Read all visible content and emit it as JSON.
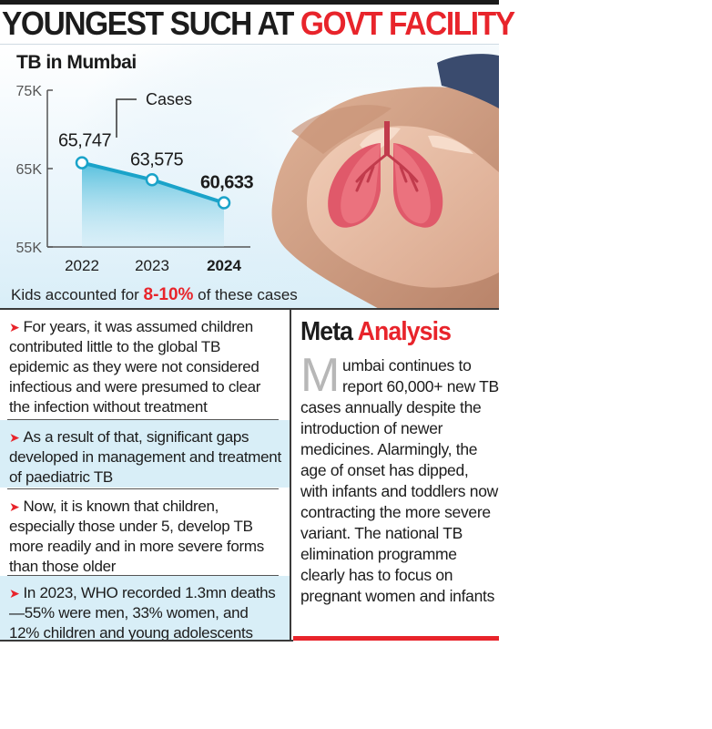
{
  "headline": {
    "part1": "YOUNGEST SUCH AT ",
    "part2": "GOVT FACILITY"
  },
  "chart_data": {
    "type": "line",
    "title": "TB in Mumbai",
    "categories": [
      "2022",
      "2023",
      "2024"
    ],
    "series": [
      {
        "name": "Cases",
        "values": [
          65747,
          63575,
          60633
        ]
      }
    ],
    "value_labels": [
      "65,747",
      "63,575",
      "60,633"
    ],
    "y_ticks": [
      "75K",
      "65K",
      "55K"
    ],
    "y_tick_values": [
      75000,
      65000,
      55000
    ],
    "ylim": [
      55000,
      75000
    ],
    "grid": false,
    "legend": "top"
  },
  "kids_note": {
    "prefix": "Kids accounted for ",
    "pct": "8-10%",
    "suffix": " of these cases"
  },
  "bullets": [
    "For years, it was assumed children contributed little to the global TB epidemic as they were not considered infectious and were presumed to clear the infection without treatment",
    "As a result of that, significant gaps developed in management and treatment of paediatric TB",
    "Now, it is known that children, especially those under 5, develop TB more readily and in more severe forms than those older",
    "In 2023, WHO recorded 1.3mn deaths—55% were men, 33% women, and 12% children and young adolescents"
  ],
  "meta": {
    "title_part1": "Meta ",
    "title_part2": "Analysis",
    "dropcap": "M",
    "body": "umbai continues to report 60,000+ new TB cases annually despite the introduction of newer medicines. Alarmingly, the age of onset has dipped, with infants and toddlers now contracting the more severe variant. The national TB elimination programme clearly has to focus on pregnant women and infants"
  },
  "colors": {
    "accent": "#e8242b",
    "line": "#1aa3c9",
    "shade": "#d8eef7"
  },
  "icons": {
    "arrow": "arrowhead-bullet-icon",
    "illustration": "hands-holding-lungs-icon"
  }
}
